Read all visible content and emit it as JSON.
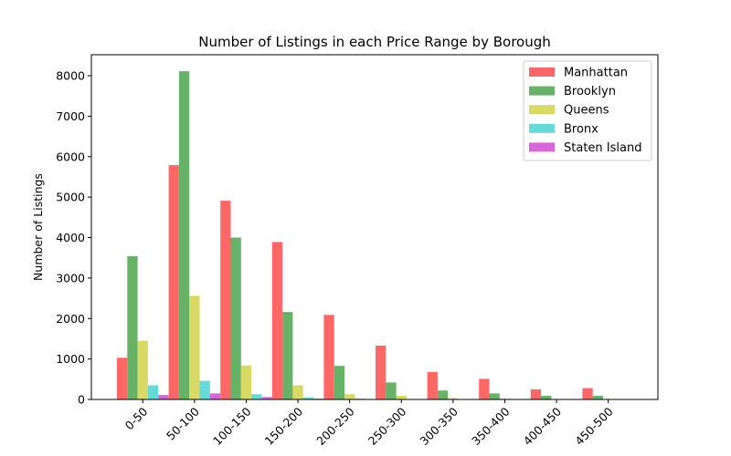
{
  "chart_data": {
    "type": "bar",
    "title": "Number of Listings in each Price Range by Borough",
    "xlabel": "",
    "ylabel": "Number of Listings",
    "ylim": [
      0,
      8500
    ],
    "yticks": [
      0,
      1000,
      2000,
      3000,
      4000,
      5000,
      6000,
      7000,
      8000
    ],
    "grid": false,
    "legend_position": "top-right",
    "categories": [
      "0-50",
      "50-100",
      "100-150",
      "150-200",
      "200-250",
      "250-300",
      "300-350",
      "350-400",
      "400-450",
      "450-500"
    ],
    "series": [
      {
        "name": "Manhattan",
        "color": "#ff6666",
        "values": [
          1030,
          5790,
          4910,
          3890,
          2090,
          1330,
          680,
          510,
          250,
          280
        ]
      },
      {
        "name": "Brooklyn",
        "color": "#66b266",
        "values": [
          3540,
          8110,
          4000,
          2160,
          830,
          420,
          220,
          150,
          90,
          90
        ]
      },
      {
        "name": "Queens",
        "color": "#d9d966",
        "values": [
          1450,
          2560,
          840,
          350,
          130,
          90,
          30,
          20,
          10,
          10
        ]
      },
      {
        "name": "Bronx",
        "color": "#66d9d9",
        "values": [
          350,
          460,
          130,
          50,
          20,
          10,
          5,
          5,
          5,
          5
        ]
      },
      {
        "name": "Staten Island",
        "color": "#d966d9",
        "values": [
          110,
          150,
          60,
          20,
          10,
          5,
          5,
          5,
          5,
          5
        ]
      }
    ]
  }
}
